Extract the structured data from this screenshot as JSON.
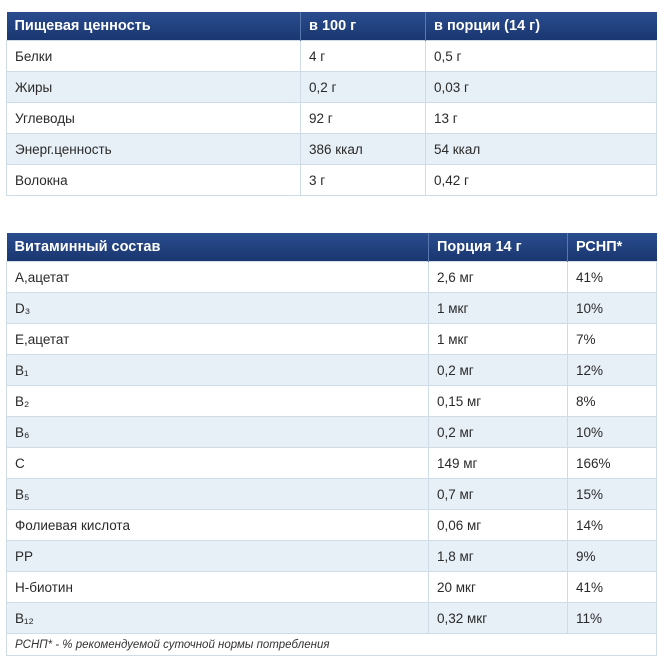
{
  "nutrition_table": {
    "header": [
      "Пищевая ценность",
      "в 100 г",
      "в порции (14 г)"
    ],
    "rows": [
      [
        "Белки",
        "4 г",
        "0,5 г"
      ],
      [
        "Жиры",
        "0,2 г",
        "0,03 г"
      ],
      [
        "Углеводы",
        "92 г",
        "13 г"
      ],
      [
        "Энерг.ценность",
        "386 ккал",
        "54 ккал"
      ],
      [
        "Волокна",
        "3 г",
        "0,42 г"
      ]
    ]
  },
  "vitamin_table": {
    "header": [
      "Витаминный состав",
      "Порция 14 г",
      "РСНП*"
    ],
    "rows": [
      [
        "А,ацетат",
        "2,6 мг",
        "41%"
      ],
      [
        "D₃",
        "1 мкг",
        "10%"
      ],
      [
        "Е,ацетат",
        "1 мкг",
        "7%"
      ],
      [
        "B₁",
        "0,2 мг",
        "12%"
      ],
      [
        "B₂",
        "0,15 мг",
        "8%"
      ],
      [
        "B₆",
        "0,2 мг",
        "10%"
      ],
      [
        "C",
        "149 мг",
        "166%"
      ],
      [
        "B₅",
        "0,7 мг",
        "15%"
      ],
      [
        "Фолиевая кислота",
        "0,06 мг",
        "14%"
      ],
      [
        "PP",
        "1,8 мг",
        "9%"
      ],
      [
        "Н-биотин",
        "20 мкг",
        "41%"
      ],
      [
        "B₁₂",
        "0,32 мкг",
        "11%"
      ]
    ],
    "footnote": "РСНП* - % рекомендуемой суточной нормы потребления"
  }
}
